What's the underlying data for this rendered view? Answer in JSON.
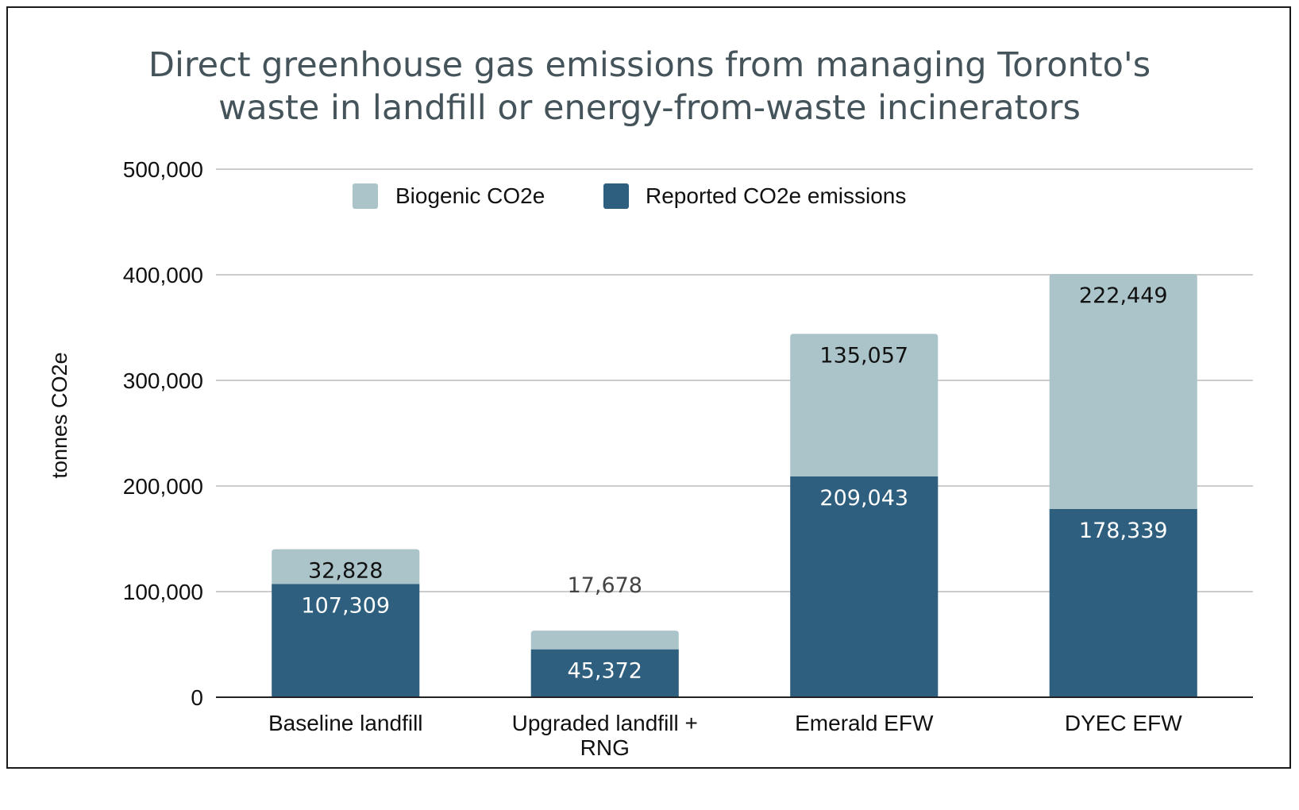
{
  "chart_data": {
    "type": "bar",
    "stacked": true,
    "title": "Direct greenhouse gas emissions from managing Toronto's waste in landfill or energy-from-waste incinerators",
    "title_lines": [
      "Direct greenhouse gas emissions from managing Toronto's",
      "waste in landfill or energy-from-waste incinerators"
    ],
    "xlabel": "",
    "ylabel": "tonnes CO2e",
    "ylim": [
      0,
      500000
    ],
    "yticks": [
      0,
      100000,
      200000,
      300000,
      400000,
      500000
    ],
    "ytick_labels": [
      "0",
      "100,000",
      "200,000",
      "300,000",
      "400,000",
      "500,000"
    ],
    "grid": true,
    "legend_position": "top",
    "categories": [
      [
        "Baseline landfill"
      ],
      [
        "Upgraded landfill +",
        "RNG"
      ],
      [
        "Emerald EFW"
      ],
      [
        "DYEC EFW"
      ]
    ],
    "category_names": [
      "Baseline landfill",
      "Upgraded landfill + RNG",
      "Emerald EFW",
      "DYEC EFW"
    ],
    "series": [
      {
        "name": "Reported CO2e emissions",
        "color": "#2e5f7e",
        "label_color": "#ffffff",
        "values": [
          107309,
          45372,
          209043,
          178339
        ],
        "labels": [
          "107,309",
          "45,372",
          "209,043",
          "178,339"
        ]
      },
      {
        "name": "Biogenic CO2e",
        "color": "#abc4c9",
        "label_color": "#111111",
        "values": [
          32828,
          17678,
          135057,
          222449
        ],
        "labels": [
          "32,828",
          "17,678",
          "135,057",
          "222,449"
        ]
      }
    ],
    "legend": [
      {
        "name": "Biogenic CO2e",
        "color": "#abc4c9"
      },
      {
        "name": "Reported CO2e emissions",
        "color": "#2e5f7e"
      }
    ],
    "colors": {
      "title": "#44545a",
      "gridline": "#cccccc",
      "axis": "#222222",
      "outside_label": "#444444"
    }
  }
}
